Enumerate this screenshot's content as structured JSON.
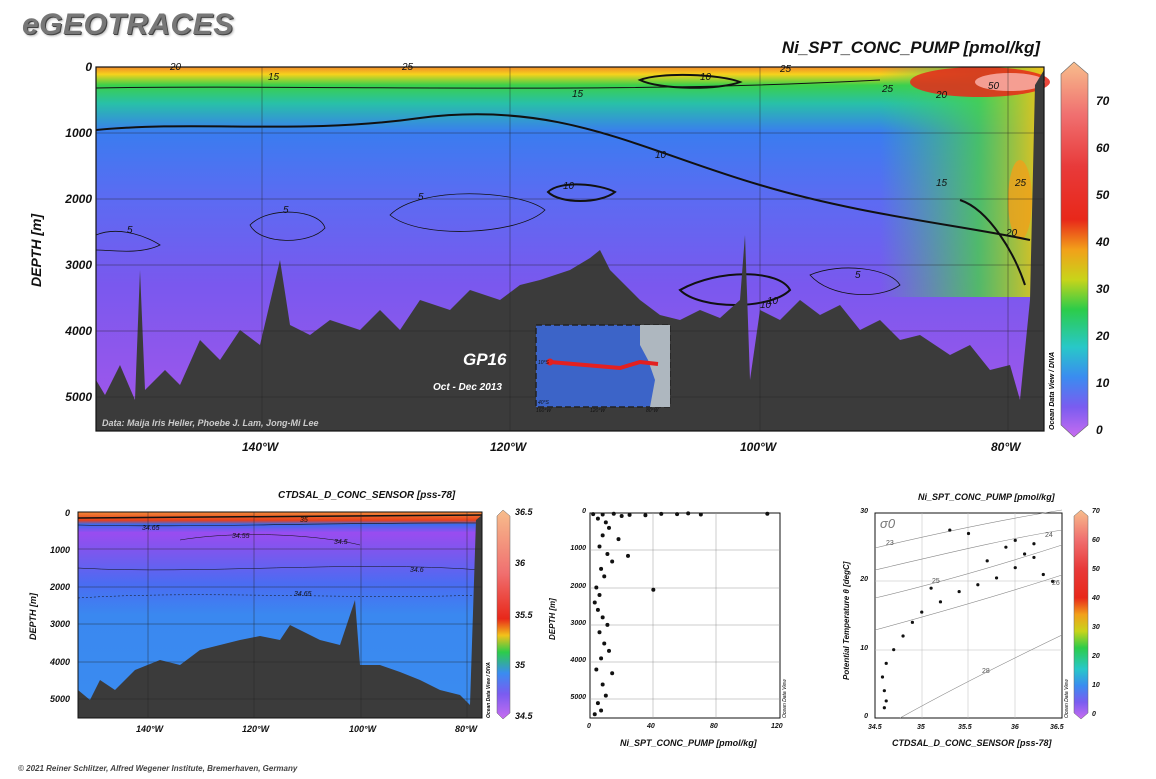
{
  "logo": "eGEOTRACES",
  "main": {
    "title": "Ni_SPT_CONC_PUMP [pmol/kg]",
    "ylabel": "DEPTH [m]",
    "yticks": [
      "0",
      "1000",
      "2000",
      "3000",
      "4000",
      "5000"
    ],
    "xticks": [
      "140°W",
      "120°W",
      "100°W",
      "80°W"
    ],
    "colorbar_ticks": [
      "70",
      "60",
      "50",
      "40",
      "30",
      "20",
      "10",
      "0"
    ],
    "colorbar_side_label": "Ocean Data View / DIVA",
    "credit": "Data: Maija Iris Heller, Phoebe J. Lam, Jong-Mi Lee",
    "cruise": "GP16",
    "cruise_dates": "Oct - Dec 2013",
    "inset_labels": [
      "10°S",
      "40°S",
      "160°W",
      "120°W",
      "80°W"
    ],
    "contour_labels": [
      "20",
      "25",
      "25",
      "10",
      "25",
      "20",
      "50",
      "15",
      "15",
      "10",
      "10",
      "15",
      "25",
      "5",
      "5",
      "5",
      "20",
      "10",
      "5",
      "10"
    ],
    "colors": {
      "low": "#c26bf0",
      "mid": "#22c45a",
      "high": "#e8281a",
      "top": "#f6b98a",
      "seafloor": "#3b3b3b"
    }
  },
  "salinity": {
    "title": "CTDSAL_D_CONC_SENSOR [pss-78]",
    "ylabel": "DEPTH [m]",
    "yticks": [
      "0",
      "1000",
      "2000",
      "3000",
      "4000",
      "5000"
    ],
    "xticks": [
      "140°W",
      "120°W",
      "100°W",
      "80°W"
    ],
    "colorbar_ticks": [
      "36.5",
      "36",
      "35.5",
      "35",
      "34.5"
    ],
    "colorbar_side_label": "Ocean Data View / DIVA",
    "contour_labels": [
      "35",
      "34.65",
      "34.55",
      "34.5",
      "34.6",
      "34.65"
    ]
  },
  "scatter": {
    "xlabel": "Ni_SPT_CONC_PUMP [pmol/kg]",
    "ylabel": "DEPTH [m]",
    "yticks": [
      "0",
      "1000",
      "2000",
      "3000",
      "4000",
      "5000"
    ],
    "xticks": [
      "0",
      "40",
      "80",
      "120"
    ],
    "side_label": "Ocean Data View"
  },
  "ts": {
    "title": "Ni_SPT_CONC_PUMP [pmol/kg]",
    "xlabel": "CTDSAL_D_CONC_SENSOR [pss-78]",
    "ylabel": "Potential Temperature θ [degC]",
    "xticks": [
      "34.5",
      "35",
      "35.5",
      "36",
      "36.5"
    ],
    "yticks": [
      "30",
      "20",
      "10",
      "0"
    ],
    "sigma_label": "σ0",
    "isopycnal_labels": [
      "23",
      "24",
      "25",
      "26",
      "28"
    ],
    "colorbar_ticks": [
      "70",
      "60",
      "50",
      "40",
      "30",
      "20",
      "10",
      "0"
    ],
    "side_label": "Ocean Data View"
  },
  "footer": "© 2021 Reiner Schlitzer, Alfred Wegener Institute, Bremerhaven, Germany",
  "chart_data": [
    {
      "type": "heatmap",
      "title": "Ni_SPT_CONC_PUMP [pmol/kg]",
      "xlabel": "",
      "ylabel": "DEPTH [m]",
      "xlim": [
        "152°W",
        "77°W"
      ],
      "ylim": [
        5500,
        0
      ],
      "colorbar_range": [
        0,
        75
      ],
      "x_ticks": [
        "140°W",
        "120°W",
        "100°W",
        "80°W"
      ],
      "y_ticks": [
        0,
        1000,
        2000,
        3000,
        4000,
        5000
      ],
      "contour_levels": [
        5,
        10,
        15,
        20,
        25,
        50
      ]
    },
    {
      "type": "heatmap",
      "title": "CTDSAL_D_CONC_SENSOR [pss-78]",
      "ylabel": "DEPTH [m]",
      "ylim": [
        5500,
        0
      ],
      "colorbar_range": [
        34.5,
        36.5
      ],
      "contour_levels": [
        34.5,
        34.55,
        34.6,
        34.65,
        35
      ]
    },
    {
      "type": "scatter",
      "xlabel": "Ni_SPT_CONC_PUMP [pmol/kg]",
      "ylabel": "DEPTH [m]",
      "xlim": [
        0,
        120
      ],
      "ylim": [
        5500,
        0
      ],
      "points": [
        [
          2,
          30
        ],
        [
          8,
          40
        ],
        [
          15,
          20
        ],
        [
          25,
          50
        ],
        [
          35,
          60
        ],
        [
          45,
          25
        ],
        [
          55,
          30
        ],
        [
          62,
          10
        ],
        [
          70,
          40
        ],
        [
          112,
          20
        ],
        [
          20,
          80
        ],
        [
          5,
          150
        ],
        [
          10,
          250
        ],
        [
          12,
          400
        ],
        [
          8,
          600
        ],
        [
          18,
          700
        ],
        [
          6,
          900
        ],
        [
          11,
          1100
        ],
        [
          14,
          1300
        ],
        [
          24,
          1150
        ],
        [
          7,
          1500
        ],
        [
          9,
          1700
        ],
        [
          4,
          2000
        ],
        [
          6,
          2200
        ],
        [
          3,
          2400
        ],
        [
          5,
          2600
        ],
        [
          8,
          2800
        ],
        [
          40,
          2060
        ],
        [
          11,
          3000
        ],
        [
          6,
          3200
        ],
        [
          9,
          3500
        ],
        [
          12,
          3700
        ],
        [
          7,
          3900
        ],
        [
          4,
          4200
        ],
        [
          14,
          4300
        ],
        [
          8,
          4600
        ],
        [
          10,
          4900
        ],
        [
          5,
          5100
        ],
        [
          7,
          5300
        ],
        [
          3,
          5400
        ]
      ]
    },
    {
      "type": "scatter",
      "xlabel": "CTDSAL_D_CONC_SENSOR [pss-78]",
      "ylabel": "Potential Temperature θ [degC]",
      "xlim": [
        34.5,
        36.5
      ],
      "ylim": [
        0,
        30
      ],
      "points": [
        [
          34.6,
          1.5
        ],
        [
          34.62,
          2.5
        ],
        [
          34.6,
          4
        ],
        [
          34.58,
          6
        ],
        [
          34.62,
          8
        ],
        [
          34.7,
          10
        ],
        [
          34.8,
          12
        ],
        [
          34.9,
          14
        ],
        [
          35.0,
          15.5
        ],
        [
          35.2,
          17
        ],
        [
          35.4,
          18.5
        ],
        [
          35.6,
          19.5
        ],
        [
          35.8,
          20.5
        ],
        [
          36.0,
          22
        ],
        [
          36.2,
          23.5
        ],
        [
          36.0,
          26
        ],
        [
          35.9,
          25
        ],
        [
          36.3,
          21
        ],
        [
          35.5,
          27
        ],
        [
          35.3,
          27.5
        ],
        [
          36.4,
          20
        ],
        [
          36.1,
          24
        ],
        [
          35.7,
          23
        ],
        [
          35.1,
          19
        ],
        [
          36.2,
          25.5
        ]
      ]
    }
  ]
}
